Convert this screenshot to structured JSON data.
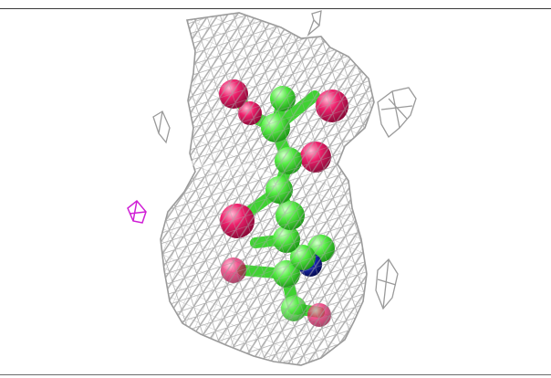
{
  "figure": {
    "subject": "electron-density-mesh-with-ball-and-stick-ligand",
    "colors": {
      "mesh": "#b4b4b4",
      "mesh_dark": "#8e8e8e",
      "carbon": "#55ee44",
      "oxygen": "#ee1f6b",
      "nitrogen": "#1a2bbf",
      "extra_density": "#d01fd6",
      "background": "#ffffff"
    },
    "atoms": {
      "oxygen_count": 7,
      "nitrogen_count": 1
    }
  }
}
